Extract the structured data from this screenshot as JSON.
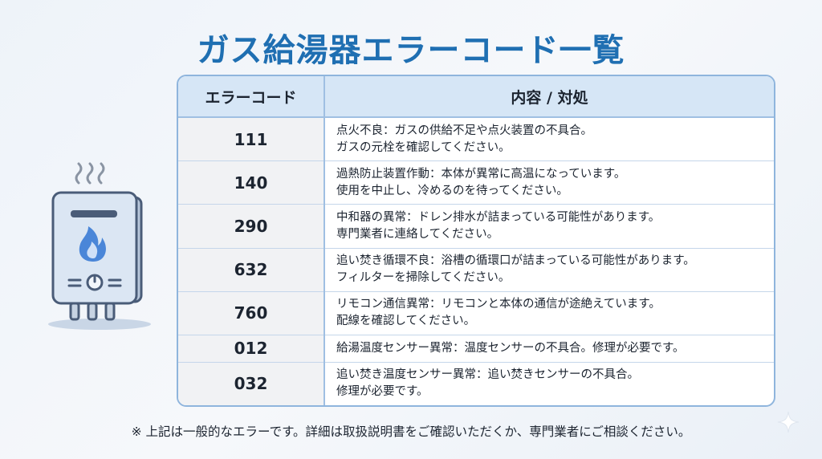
{
  "title": "ガス給湯器エラーコード一覧",
  "table": {
    "headers": [
      "エラーコード",
      "内容 / 対処"
    ],
    "rows": [
      {
        "code": "111",
        "line1": "点火不良：ガスの供給不足や点火装置の不具合。",
        "line2": "ガスの元栓を確認してください。"
      },
      {
        "code": "140",
        "line1": "過熱防止装置作動：本体が異常に高温になっています。",
        "line2": "使用を中止し、冷めるのを待ってください。"
      },
      {
        "code": "290",
        "line1": "中和器の異常：ドレン排水が詰まっている可能性があります。",
        "line2": "専門業者に連絡してください。"
      },
      {
        "code": "632",
        "line1": "追い焚き循環不良：浴槽の循環口が詰まっている可能性があります。",
        "line2": "フィルターを掃除してください。"
      },
      {
        "code": "760",
        "line1": "リモコン通信異常：リモコンと本体の通信が途絶えています。",
        "line2": "配線を確認してください。"
      },
      {
        "code": "012",
        "line1": "給湯温度センサー異常：温度センサーの不具合。修理が必要です。",
        "line2": ""
      },
      {
        "code": "032",
        "line1": "追い焚き温度センサー異常：追い焚きセンサーの不具合。",
        "line2": "修理が必要です。"
      }
    ]
  },
  "footnote": "※ 上記は一般的なエラーです。詳細は取扱説明書をご確認いただくか、専門業者にご相談ください。",
  "icons": {
    "heater": "water-heater-icon",
    "flame": "flame-icon",
    "steam": "steam-icon",
    "sparkle": "sparkle-icon"
  },
  "colors": {
    "title": "#1f6fb2",
    "header_bg": "#d6e6f6",
    "border": "#8fb5dd",
    "flame": "#4a86d8"
  }
}
